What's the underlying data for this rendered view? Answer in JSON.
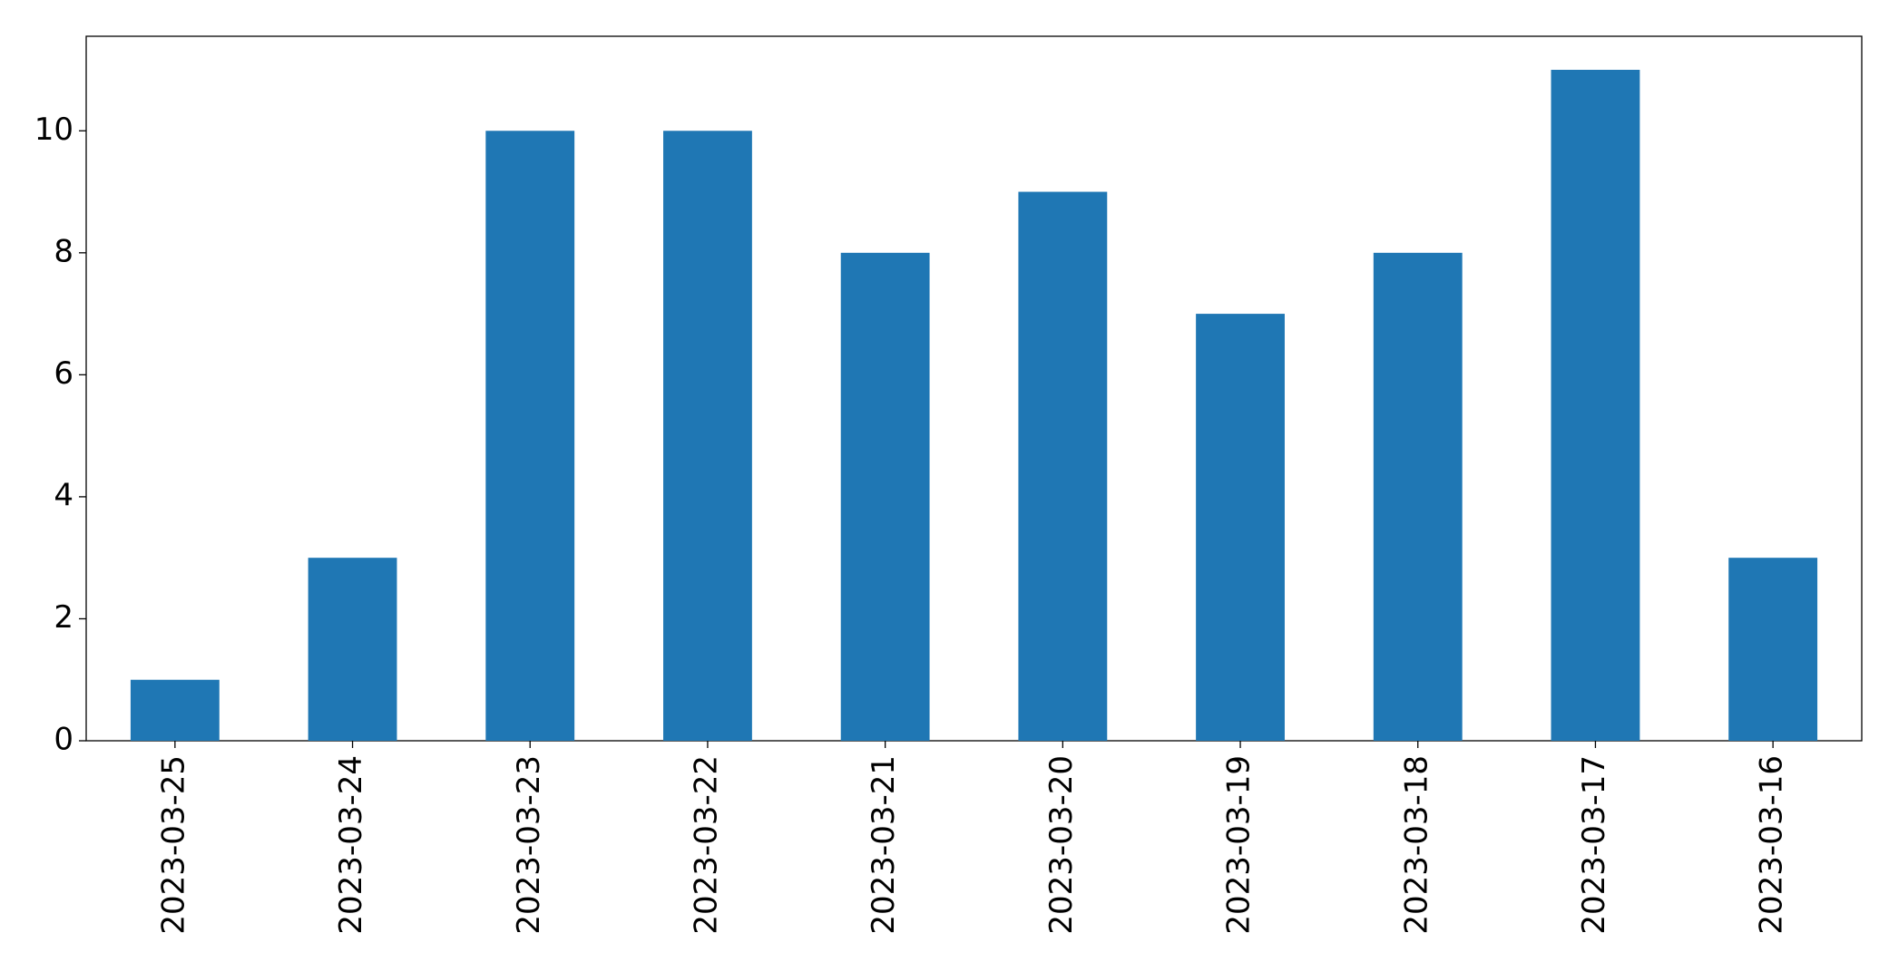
{
  "chart_data": {
    "type": "bar",
    "categories": [
      "2023-03-25",
      "2023-03-24",
      "2023-03-23",
      "2023-03-22",
      "2023-03-21",
      "2023-03-20",
      "2023-03-19",
      "2023-03-18",
      "2023-03-17",
      "2023-03-16"
    ],
    "values": [
      1,
      3,
      10,
      10,
      8,
      9,
      7,
      8,
      11,
      3
    ],
    "color": "#1f77b4",
    "ylim": [
      0,
      11.55
    ],
    "yticks": [
      0,
      2,
      4,
      6,
      8,
      10
    ],
    "grid": false
  }
}
